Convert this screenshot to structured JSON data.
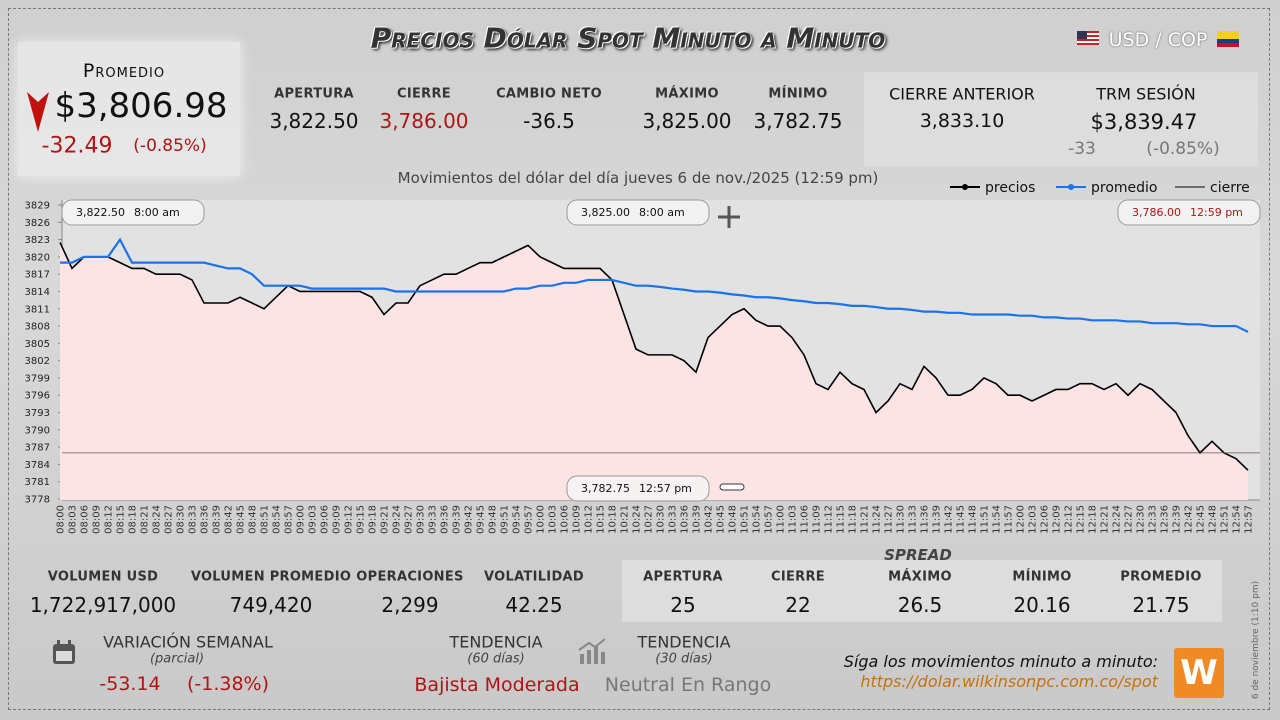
{
  "header": {
    "title": "Precios Dólar Spot Minuto a Minuto",
    "pair": "USD / COP"
  },
  "promedio": {
    "label": "Promedio",
    "value": "$3,806.98",
    "change": "-32.49",
    "pct": "(-0.85%)"
  },
  "session": [
    {
      "label": "APERTURA",
      "value": "3,822.50"
    },
    {
      "label": "CIERRE",
      "value": "3,786.00"
    },
    {
      "label": "CAMBIO NETO",
      "value": "-36.5"
    },
    {
      "label": "MÁXIMO",
      "value": "3,825.00"
    },
    {
      "label": "MÍNIMO",
      "value": "3,782.75"
    }
  ],
  "previous": {
    "label": "CIERRE ANTERIOR",
    "value": "3,833.10"
  },
  "trm": {
    "label": "TRM SESIÓN",
    "value": "$3,839.47",
    "change": "-33",
    "pct": "(-0.85%)"
  },
  "chart_data": {
    "type": "line",
    "subtitle": "Movimientos del dólar del día jueves 6 de nov./2025 (12:59 pm)",
    "categories": [
      "08:00",
      "08:03",
      "08:06",
      "08:09",
      "08:12",
      "08:15",
      "08:18",
      "08:21",
      "08:24",
      "08:27",
      "08:30",
      "08:33",
      "08:36",
      "08:39",
      "08:42",
      "08:45",
      "08:48",
      "08:51",
      "08:54",
      "08:57",
      "09:00",
      "09:03",
      "09:06",
      "09:09",
      "09:12",
      "09:15",
      "09:18",
      "09:21",
      "09:24",
      "09:27",
      "09:30",
      "09:33",
      "09:36",
      "09:39",
      "09:42",
      "09:45",
      "09:48",
      "09:51",
      "09:54",
      "09:57",
      "10:00",
      "10:03",
      "10:06",
      "10:09",
      "10:12",
      "10:15",
      "10:18",
      "10:21",
      "10:24",
      "10:27",
      "10:30",
      "10:33",
      "10:36",
      "10:39",
      "10:42",
      "10:45",
      "10:48",
      "10:51",
      "10:54",
      "10:57",
      "11:00",
      "11:03",
      "11:06",
      "11:09",
      "11:12",
      "11:15",
      "11:18",
      "11:21",
      "11:24",
      "11:27",
      "11:30",
      "11:33",
      "11:36",
      "11:39",
      "11:42",
      "11:45",
      "11:48",
      "11:51",
      "11:54",
      "11:57",
      "12:00",
      "12:03",
      "12:06",
      "12:09",
      "12:12",
      "12:15",
      "12:18",
      "12:21",
      "12:24",
      "12:27",
      "12:30",
      "12:33",
      "12:36",
      "12:39",
      "12:42",
      "12:45",
      "12:48",
      "12:51",
      "12:54",
      "12:57"
    ],
    "series": [
      {
        "name": "precios",
        "color": "#000000",
        "values": [
          3822.5,
          3818,
          3820,
          3820,
          3820,
          3819,
          3818,
          3818,
          3817,
          3817,
          3817,
          3816,
          3812,
          3812,
          3812,
          3813,
          3812,
          3811,
          3813,
          3815,
          3814,
          3814,
          3814,
          3814,
          3814,
          3814,
          3813,
          3810,
          3812,
          3812,
          3815,
          3816,
          3817,
          3817,
          3818,
          3819,
          3819,
          3820,
          3821,
          3822,
          3820,
          3819,
          3818,
          3818,
          3818,
          3818,
          3816,
          3810,
          3804,
          3803,
          3803,
          3803,
          3802,
          3800,
          3806,
          3808,
          3810,
          3811,
          3809,
          3808,
          3808,
          3806,
          3803,
          3798,
          3797,
          3800,
          3798,
          3797,
          3793,
          3795,
          3798,
          3797,
          3801,
          3799,
          3796,
          3796,
          3797,
          3799,
          3798,
          3796,
          3796,
          3795,
          3796,
          3797,
          3797,
          3798,
          3798,
          3797,
          3798,
          3796,
          3798,
          3797,
          3795,
          3793,
          3789,
          3786,
          3788,
          3786,
          3785,
          3783
        ]
      },
      {
        "name": "promedio",
        "color": "#1a73e8",
        "values": [
          3819,
          3819,
          3820,
          3820,
          3820,
          3823,
          3819,
          3819,
          3819,
          3819,
          3819,
          3819,
          3819,
          3818.5,
          3818,
          3818,
          3817,
          3815,
          3815,
          3815,
          3815,
          3814.5,
          3814.5,
          3814.5,
          3814.5,
          3814.5,
          3814.5,
          3814.5,
          3814,
          3814,
          3814,
          3814,
          3814,
          3814,
          3814,
          3814,
          3814,
          3814,
          3814.5,
          3814.5,
          3815,
          3815,
          3815.5,
          3815.5,
          3816,
          3816,
          3816,
          3815.5,
          3815,
          3815,
          3814.8,
          3814.5,
          3814.3,
          3814,
          3814,
          3813.8,
          3813.5,
          3813.3,
          3813,
          3813,
          3812.8,
          3812.5,
          3812.3,
          3812,
          3812,
          3811.8,
          3811.5,
          3811.5,
          3811.3,
          3811,
          3811,
          3810.8,
          3810.5,
          3810.5,
          3810.3,
          3810.3,
          3810,
          3810,
          3810,
          3810,
          3809.8,
          3809.8,
          3809.5,
          3809.5,
          3809.3,
          3809.3,
          3809,
          3809,
          3809,
          3808.8,
          3808.8,
          3808.5,
          3808.5,
          3808.5,
          3808.3,
          3808.3,
          3808,
          3808,
          3808,
          3807
        ]
      }
    ],
    "reference": {
      "name": "cierre",
      "value": 3786,
      "color": "#6b5050"
    },
    "ylim": [
      3778,
      3829
    ],
    "yticks": [
      3778,
      3781,
      3784,
      3787,
      3790,
      3793,
      3796,
      3799,
      3802,
      3805,
      3808,
      3811,
      3814,
      3817,
      3820,
      3823,
      3826,
      3829
    ],
    "grid": false,
    "annotations": [
      {
        "price": "3,822.50",
        "time": "8:00 am"
      },
      {
        "price": "3,825.00",
        "time": "8:00 am"
      },
      {
        "price": "3,786.00",
        "time": "12:59 pm"
      },
      {
        "price": "3,782.75",
        "time": "12:57 pm"
      }
    ]
  },
  "volume": [
    {
      "label": "VOLUMEN USD",
      "value": "1,722,917,000"
    },
    {
      "label": "VOLUMEN PROMEDIO",
      "value": "749,420"
    },
    {
      "label": "OPERACIONES",
      "value": "2,299"
    },
    {
      "label": "VOLATILIDAD",
      "value": "42.25"
    }
  ],
  "spread": {
    "title": "SPREAD",
    "items": [
      {
        "label": "APERTURA",
        "value": "25"
      },
      {
        "label": "CIERRE",
        "value": "22"
      },
      {
        "label": "MÁXIMO",
        "value": "26.5"
      },
      {
        "label": "MÍNIMO",
        "value": "20.16"
      },
      {
        "label": "PROMEDIO",
        "value": "21.75"
      }
    ]
  },
  "weekly": {
    "label": "VARIACIÓN SEMANAL",
    "note": "(parcial)",
    "change": "-53.14",
    "pct": "(-1.38%)"
  },
  "trend60": {
    "label": "TENDENCIA",
    "note": "(60 días)",
    "value": "Bajista Moderada"
  },
  "trend30": {
    "label": "TENDENCIA",
    "note": "(30 días)",
    "value": "Neutral En Rango"
  },
  "promo": {
    "text": "Síga los movimientos minuto a minuto:",
    "url": "https://dolar.wilkinsonpc.com.co/spot"
  },
  "stamp": "6 de noviembre (1:10 pm)"
}
